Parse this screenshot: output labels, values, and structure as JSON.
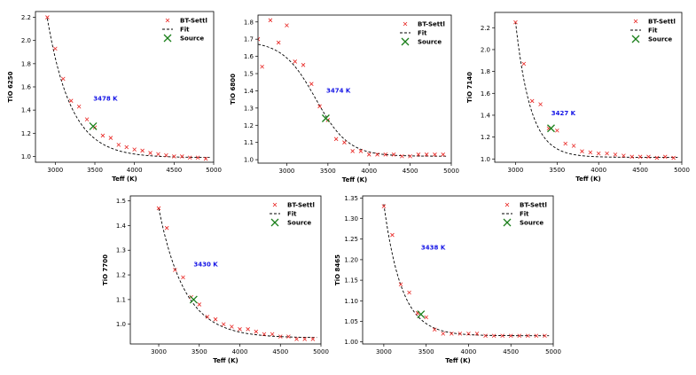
{
  "chart_data": [
    {
      "type": "scatter",
      "legend": {
        "model": "BT-Settl",
        "fit": "Fit",
        "source": "Source",
        "placement": "top-right"
      },
      "xlabel": "Teff (K)",
      "ylabel": "TiO 6250",
      "xlim": [
        2750,
        5000
      ],
      "ylim": [
        0.95,
        2.25
      ],
      "xticks": [
        3000,
        3500,
        4000,
        4500,
        5000
      ],
      "yticks": [
        1.0,
        1.2,
        1.4,
        1.6,
        1.8,
        2.0,
        2.2
      ],
      "ytick_labels": [
        "1.0",
        "1.2",
        "1.4",
        "1.6",
        "1.8",
        "2.0",
        "2.2"
      ],
      "annotation": "3478 K",
      "annotation_pos": [
        3480,
        1.48
      ],
      "model_x": [
        2900,
        3000,
        3100,
        3200,
        3300,
        3400,
        3500,
        3600,
        3700,
        3800,
        3900,
        4000,
        4100,
        4200,
        4300,
        4400,
        4500,
        4600,
        4700,
        4800,
        4900
      ],
      "model_y": [
        2.2,
        1.93,
        1.67,
        1.48,
        1.43,
        1.32,
        1.25,
        1.18,
        1.16,
        1.1,
        1.08,
        1.06,
        1.05,
        1.03,
        1.02,
        1.01,
        1.0,
        1.0,
        0.99,
        0.99,
        0.98
      ],
      "fit": {
        "a": 0.99,
        "b": 1.2,
        "x0": 2900,
        "k": 300,
        "x_start": 2900,
        "x_end": 4950
      },
      "source": [
        3478,
        1.26
      ]
    },
    {
      "type": "scatter",
      "legend": {
        "model": "BT-Settl",
        "fit": "Fit",
        "source": "Source",
        "placement": "top-right"
      },
      "xlabel": "Teff (K)",
      "ylabel": "TiO 6800",
      "xlim": [
        2650,
        5000
      ],
      "ylim": [
        0.98,
        1.84
      ],
      "xticks": [
        3000,
        3500,
        4000,
        4500,
        5000
      ],
      "yticks": [
        1.0,
        1.1,
        1.2,
        1.3,
        1.4,
        1.5,
        1.6,
        1.7,
        1.8
      ],
      "ytick_labels": [
        "1.0",
        "1.1",
        "1.2",
        "1.3",
        "1.4",
        "1.5",
        "1.6",
        "1.7",
        "1.8"
      ],
      "annotation": "3474 K",
      "annotation_pos": [
        3480,
        1.39
      ],
      "model_x": [
        2650,
        2700,
        2800,
        2900,
        3000,
        3100,
        3200,
        3300,
        3400,
        3500,
        3600,
        3700,
        3800,
        3900,
        4000,
        4100,
        4200,
        4300,
        4400,
        4500,
        4600,
        4700,
        4800,
        4900
      ],
      "model_y": [
        1.7,
        1.54,
        1.81,
        1.68,
        1.78,
        1.57,
        1.55,
        1.44,
        1.31,
        1.23,
        1.12,
        1.1,
        1.05,
        1.05,
        1.03,
        1.03,
        1.03,
        1.03,
        1.02,
        1.02,
        1.03,
        1.03,
        1.03,
        1.03
      ],
      "fit": {
        "a": 1.02,
        "b": 0.67,
        "x0": 3350,
        "k": 200,
        "x_start": 2650,
        "x_end": 4950
      },
      "source": [
        3474,
        1.24
      ]
    },
    {
      "type": "scatter",
      "legend": {
        "model": "BT-Settl",
        "fit": "Fit",
        "source": "Source",
        "placement": "top-right"
      },
      "xlabel": "Teff (K)",
      "ylabel": "TiO 7140",
      "xlim": [
        2750,
        5000
      ],
      "ylim": [
        0.97,
        2.34
      ],
      "xticks": [
        3000,
        3500,
        4000,
        4500,
        5000
      ],
      "yticks": [
        1.0,
        1.2,
        1.4,
        1.6,
        1.8,
        2.0,
        2.2
      ],
      "ytick_labels": [
        "1.0",
        "1.2",
        "1.4",
        "1.6",
        "1.8",
        "2.0",
        "2.2"
      ],
      "annotation": "3427 K",
      "annotation_pos": [
        3430,
        1.4
      ],
      "model_x": [
        3000,
        3100,
        3200,
        3300,
        3400,
        3500,
        3600,
        3700,
        3800,
        3900,
        4000,
        4100,
        4200,
        4300,
        4400,
        4500,
        4600,
        4700,
        4800,
        4900
      ],
      "model_y": [
        2.25,
        1.87,
        1.53,
        1.5,
        1.28,
        1.26,
        1.14,
        1.12,
        1.07,
        1.06,
        1.05,
        1.05,
        1.04,
        1.03,
        1.02,
        1.02,
        1.02,
        1.01,
        1.02,
        1.01
      ],
      "fit": {
        "a": 1.015,
        "b": 1.24,
        "x0": 3000,
        "k": 180,
        "x_start": 3000,
        "x_end": 4950
      },
      "source": [
        3427,
        1.28
      ]
    },
    {
      "type": "scatter",
      "legend": {
        "model": "BT-Settl",
        "fit": "Fit",
        "source": "Source",
        "placement": "top-right"
      },
      "xlabel": "Teff (K)",
      "ylabel": "TiO 7700",
      "xlim": [
        2650,
        5000
      ],
      "ylim": [
        0.92,
        1.52
      ],
      "xticks": [
        3000,
        3500,
        4000,
        4500,
        5000
      ],
      "yticks": [
        1.0,
        1.1,
        1.2,
        1.3,
        1.4,
        1.5
      ],
      "ytick_labels": [
        "1.0",
        "1.1",
        "1.2",
        "1.3",
        "1.4",
        "1.5"
      ],
      "annotation": "3430 K",
      "annotation_pos": [
        3430,
        1.235
      ],
      "model_x": [
        3000,
        3100,
        3200,
        3300,
        3400,
        3500,
        3600,
        3700,
        3800,
        3900,
        4000,
        4100,
        4200,
        4300,
        4400,
        4500,
        4600,
        4700,
        4800,
        4900
      ],
      "model_y": [
        1.47,
        1.39,
        1.22,
        1.19,
        1.11,
        1.08,
        1.03,
        1.02,
        1.0,
        0.99,
        0.98,
        0.98,
        0.97,
        0.96,
        0.96,
        0.95,
        0.95,
        0.94,
        0.94,
        0.94
      ],
      "fit": {
        "a": 0.945,
        "b": 0.525,
        "x0": 3000,
        "k": 320,
        "x_start": 3000,
        "x_end": 4950
      },
      "source": [
        3430,
        1.1
      ]
    },
    {
      "type": "scatter",
      "legend": {
        "model": "BT-Settl",
        "fit": "Fit",
        "source": "Source",
        "placement": "top-right"
      },
      "xlabel": "Teff (K)",
      "ylabel": "TiO 8465",
      "xlim": [
        2750,
        5000
      ],
      "ylim": [
        0.995,
        1.355
      ],
      "xticks": [
        3000,
        3500,
        4000,
        4500,
        5000
      ],
      "yticks": [
        1.0,
        1.05,
        1.1,
        1.15,
        1.2,
        1.25,
        1.3,
        1.35
      ],
      "ytick_labels": [
        "1.00",
        "1.05",
        "1.10",
        "1.15",
        "1.20",
        "1.25",
        "1.30",
        "1.35"
      ],
      "annotation": "3438 K",
      "annotation_pos": [
        3440,
        1.225
      ],
      "model_x": [
        3000,
        3100,
        3200,
        3300,
        3400,
        3500,
        3600,
        3700,
        3800,
        3900,
        4000,
        4100,
        4200,
        4300,
        4400,
        4500,
        4600,
        4700,
        4800,
        4900
      ],
      "model_y": [
        1.33,
        1.26,
        1.14,
        1.12,
        1.07,
        1.06,
        1.03,
        1.02,
        1.02,
        1.02,
        1.02,
        1.02,
        1.015,
        1.015,
        1.015,
        1.015,
        1.015,
        1.015,
        1.015,
        1.015
      ],
      "fit": {
        "a": 1.015,
        "b": 0.32,
        "x0": 3000,
        "k": 210,
        "x_start": 3000,
        "x_end": 4950
      },
      "source": [
        3438,
        1.067
      ]
    }
  ]
}
